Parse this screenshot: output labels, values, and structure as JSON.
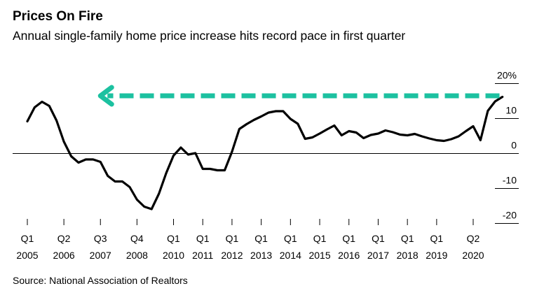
{
  "title": "Prices On Fire",
  "subtitle": "Annual single-family home price increase hits record pace in first quarter",
  "source": "Source: National Association of Realtors",
  "colors": {
    "line": "#000000",
    "arrow": "#1cc1a0",
    "axis": "#000000"
  },
  "chart_data": {
    "type": "line",
    "ylim": [
      -20,
      20
    ],
    "grid": false,
    "y_ticks": [
      {
        "value": 20,
        "label": "20%"
      },
      {
        "value": 10,
        "label": "10"
      },
      {
        "value": 0,
        "label": "0"
      },
      {
        "value": -10,
        "label": "-10"
      },
      {
        "value": -20,
        "label": "-20"
      }
    ],
    "x_ticks": [
      {
        "x": 2005.0,
        "quarter": "Q1",
        "year": "2005"
      },
      {
        "x": 2006.25,
        "quarter": "Q2",
        "year": "2006"
      },
      {
        "x": 2007.5,
        "quarter": "Q3",
        "year": "2007"
      },
      {
        "x": 2008.75,
        "quarter": "Q4",
        "year": "2008"
      },
      {
        "x": 2010.0,
        "quarter": "Q1",
        "year": "2010"
      },
      {
        "x": 2011.0,
        "quarter": "Q1",
        "year": "2011"
      },
      {
        "x": 2012.0,
        "quarter": "Q1",
        "year": "2012"
      },
      {
        "x": 2013.0,
        "quarter": "Q1",
        "year": "2013"
      },
      {
        "x": 2014.0,
        "quarter": "Q1",
        "year": "2014"
      },
      {
        "x": 2015.0,
        "quarter": "Q1",
        "year": "2015"
      },
      {
        "x": 2016.0,
        "quarter": "Q1",
        "year": "2016"
      },
      {
        "x": 2017.0,
        "quarter": "Q1",
        "year": "2017"
      },
      {
        "x": 2018.0,
        "quarter": "Q1",
        "year": "2018"
      },
      {
        "x": 2019.0,
        "quarter": "Q1",
        "year": "2019"
      },
      {
        "x": 2020.25,
        "quarter": "Q2",
        "year": "2020"
      }
    ],
    "series": [
      {
        "points": [
          [
            2005.0,
            9.2
          ],
          [
            2005.25,
            13.2
          ],
          [
            2005.5,
            14.8
          ],
          [
            2005.75,
            13.6
          ],
          [
            2006.0,
            9.4
          ],
          [
            2006.25,
            3.4
          ],
          [
            2006.5,
            -0.8
          ],
          [
            2006.75,
            -2.6
          ],
          [
            2007.0,
            -1.7
          ],
          [
            2007.25,
            -1.7
          ],
          [
            2007.5,
            -2.4
          ],
          [
            2007.75,
            -6.4
          ],
          [
            2008.0,
            -8.0
          ],
          [
            2008.25,
            -8.0
          ],
          [
            2008.5,
            -9.6
          ],
          [
            2008.75,
            -13.2
          ],
          [
            2009.0,
            -15.2
          ],
          [
            2009.25,
            -15.9
          ],
          [
            2009.5,
            -11.5
          ],
          [
            2009.75,
            -5.6
          ],
          [
            2010.0,
            -0.6
          ],
          [
            2010.25,
            1.7
          ],
          [
            2010.5,
            -0.3
          ],
          [
            2010.75,
            0.1
          ],
          [
            2011.0,
            -4.4
          ],
          [
            2011.25,
            -4.4
          ],
          [
            2011.5,
            -4.8
          ],
          [
            2011.75,
            -4.8
          ],
          [
            2012.0,
            0.5
          ],
          [
            2012.25,
            7.0
          ],
          [
            2012.5,
            8.4
          ],
          [
            2012.75,
            9.6
          ],
          [
            2013.0,
            10.6
          ],
          [
            2013.25,
            11.7
          ],
          [
            2013.5,
            12.1
          ],
          [
            2013.75,
            12.1
          ],
          [
            2014.0,
            9.9
          ],
          [
            2014.25,
            8.5
          ],
          [
            2014.5,
            4.2
          ],
          [
            2014.75,
            4.6
          ],
          [
            2015.0,
            5.7
          ],
          [
            2015.25,
            6.9
          ],
          [
            2015.5,
            8.0
          ],
          [
            2015.75,
            5.2
          ],
          [
            2016.0,
            6.4
          ],
          [
            2016.25,
            6.0
          ],
          [
            2016.5,
            4.4
          ],
          [
            2016.75,
            5.3
          ],
          [
            2017.0,
            5.7
          ],
          [
            2017.25,
            6.6
          ],
          [
            2017.5,
            6.1
          ],
          [
            2017.75,
            5.4
          ],
          [
            2018.0,
            5.2
          ],
          [
            2018.25,
            5.6
          ],
          [
            2018.5,
            4.9
          ],
          [
            2018.75,
            4.3
          ],
          [
            2019.0,
            3.8
          ],
          [
            2019.25,
            3.6
          ],
          [
            2019.5,
            4.1
          ],
          [
            2019.75,
            4.9
          ],
          [
            2020.0,
            6.4
          ],
          [
            2020.25,
            7.8
          ],
          [
            2020.5,
            3.8
          ],
          [
            2020.75,
            12.2
          ],
          [
            2021.0,
            14.9
          ],
          [
            2021.25,
            16.2
          ]
        ]
      }
    ],
    "annotations": [
      {
        "type": "arrow",
        "direction": "left",
        "style": "dashed",
        "y_value": 16.5,
        "x_from": 2021.15,
        "x_to": 2007.5
      }
    ]
  }
}
